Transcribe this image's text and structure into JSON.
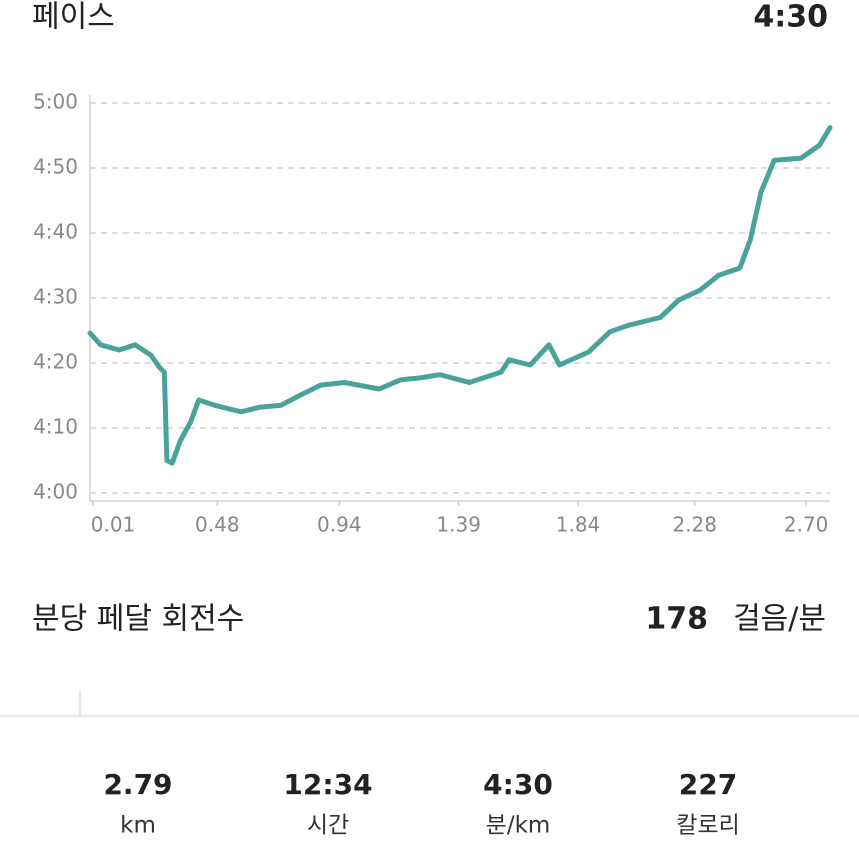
{
  "header": {
    "title": "페이스",
    "value": "4:30"
  },
  "chart_data": {
    "type": "line",
    "x": [
      0,
      0.04,
      0.11,
      0.17,
      0.23,
      0.26,
      0.28,
      0.29,
      0.31,
      0.34,
      0.38,
      0.41,
      0.47,
      0.57,
      0.64,
      0.72,
      0.79,
      0.87,
      0.96,
      1.09,
      1.17,
      1.24,
      1.32,
      1.43,
      1.55,
      1.58,
      1.66,
      1.73,
      1.77,
      1.88,
      1.96,
      2.03,
      2.15,
      2.22,
      2.3,
      2.37,
      2.45,
      2.49,
      2.53,
      2.58,
      2.68,
      2.75,
      2.79
    ],
    "values": [
      264.6,
      262.8,
      262,
      262.8,
      261.2,
      259.4,
      258.6,
      245,
      244.6,
      248,
      251,
      254.3,
      253.5,
      252.5,
      253.2,
      253.5,
      255,
      256.6,
      257,
      256,
      257.4,
      257.7,
      258.2,
      257,
      258.6,
      260.5,
      259.7,
      262.8,
      259.7,
      261.7,
      264.8,
      265.8,
      267,
      269.7,
      271.2,
      273.5,
      274.6,
      279,
      286.3,
      291.2,
      291.5,
      293.5,
      296.2
    ],
    "color": "#4aa39a",
    "xlim": [
      0,
      2.79
    ],
    "ylim": [
      240,
      300
    ],
    "xticks": [
      0.01,
      0.48,
      0.94,
      1.39,
      1.84,
      2.28,
      {
        "value": 2.7,
        "label": "2.70"
      }
    ],
    "yticks": [
      {
        "value": 240,
        "label": "4:00"
      },
      {
        "value": 250,
        "label": "4:10"
      },
      {
        "value": 260,
        "label": "4:20"
      },
      {
        "value": 270,
        "label": "4:30"
      },
      {
        "value": 280,
        "label": "4:40"
      },
      {
        "value": 290,
        "label": "4:50"
      },
      {
        "value": 300,
        "label": "5:00"
      }
    ],
    "grid": true
  },
  "cadence": {
    "title": "분당 페달 회전수",
    "value": 178,
    "unit": "걸음/분"
  },
  "stats": [
    {
      "value": "2.79",
      "label": "km"
    },
    {
      "value": "12:34",
      "label": "시간"
    },
    {
      "value": "4:30",
      "label": "분/km"
    },
    {
      "value": "227",
      "label": "칼로리"
    }
  ]
}
